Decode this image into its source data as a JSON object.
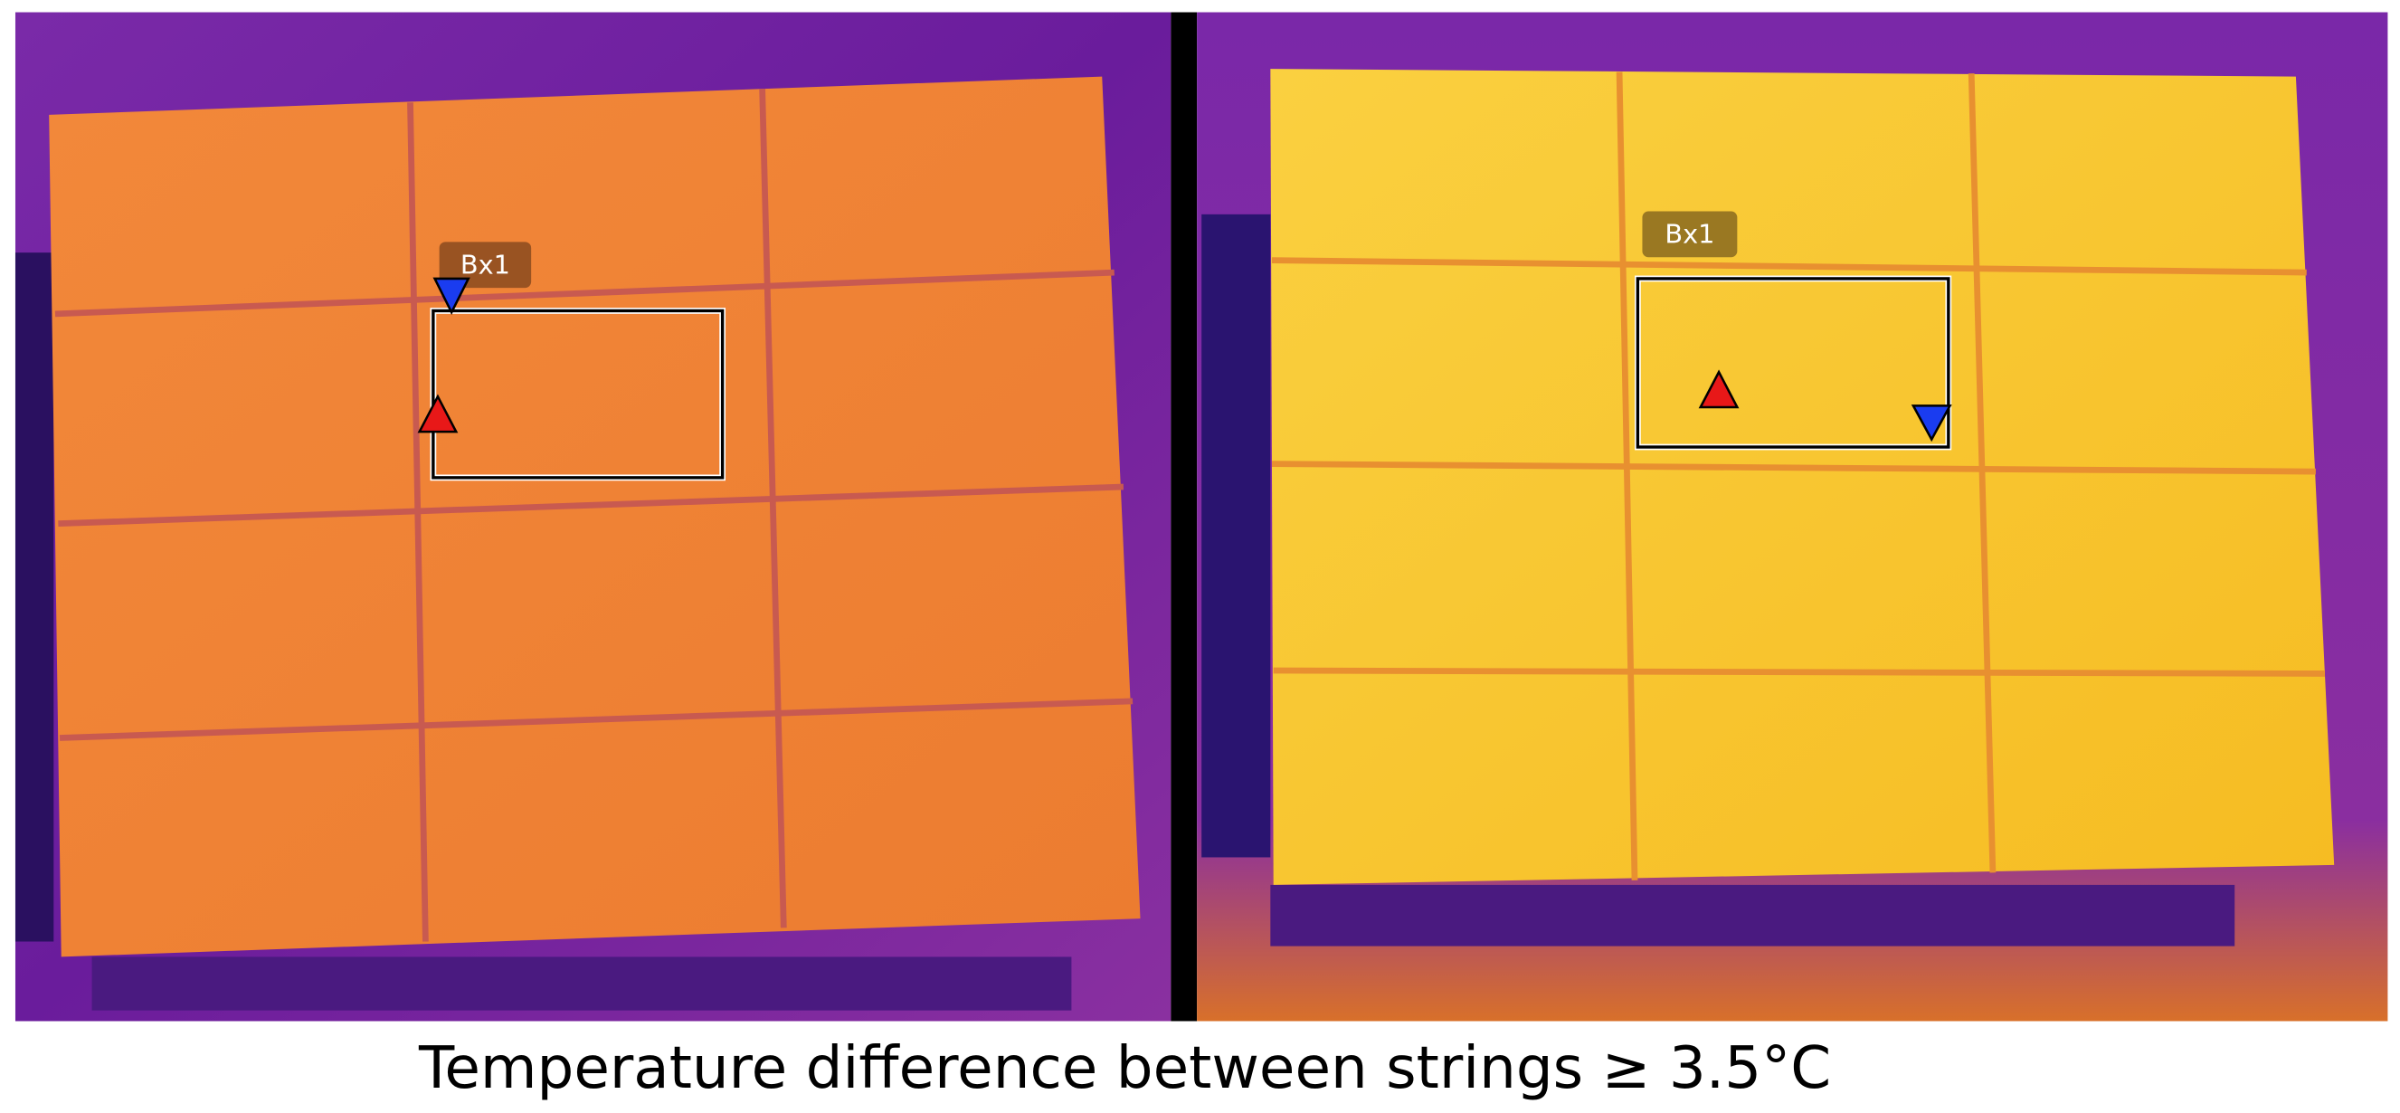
{
  "panels": [
    {
      "label": "Bx1"
    },
    {
      "label": "Bx1"
    }
  ],
  "caption": "Temperature difference between strings ≥ 3.5°C"
}
